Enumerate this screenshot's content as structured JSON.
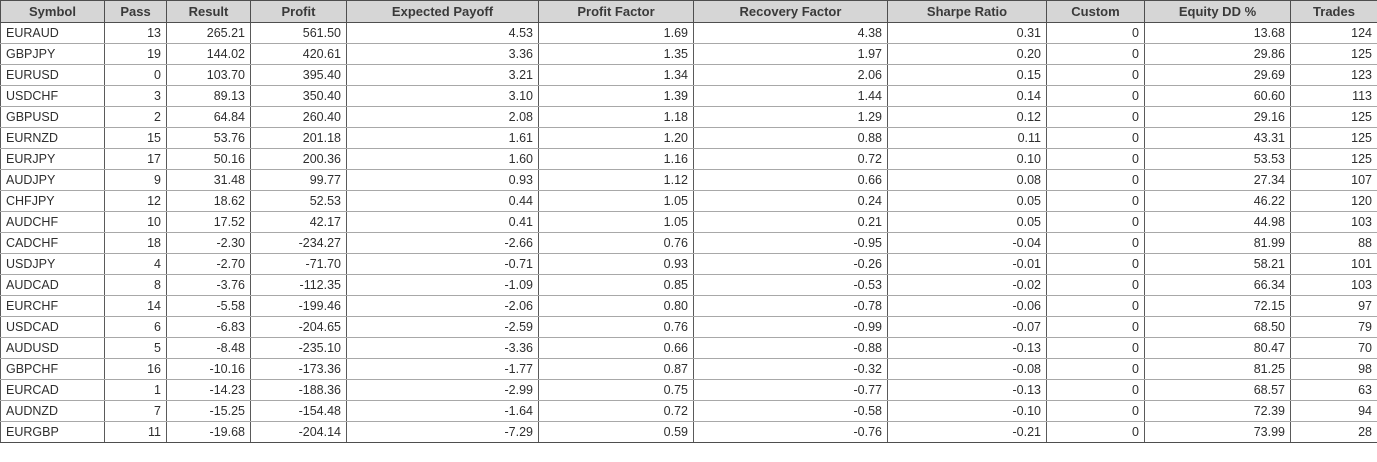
{
  "table": {
    "columns": [
      {
        "key": "symbol",
        "label": "Symbol"
      },
      {
        "key": "pass",
        "label": "Pass"
      },
      {
        "key": "result",
        "label": "Result"
      },
      {
        "key": "profit",
        "label": "Profit"
      },
      {
        "key": "expected_payoff",
        "label": "Expected Payoff"
      },
      {
        "key": "profit_factor",
        "label": "Profit Factor"
      },
      {
        "key": "recovery_factor",
        "label": "Recovery Factor"
      },
      {
        "key": "sharpe_ratio",
        "label": "Sharpe Ratio"
      },
      {
        "key": "custom",
        "label": "Custom"
      },
      {
        "key": "equity_dd_pct",
        "label": "Equity DD %"
      },
      {
        "key": "trades",
        "label": "Trades"
      }
    ],
    "rows": [
      [
        "EURAUD",
        "13",
        "265.21",
        "561.50",
        "4.53",
        "1.69",
        "4.38",
        "0.31",
        "0",
        "13.68",
        "124"
      ],
      [
        "GBPJPY",
        "19",
        "144.02",
        "420.61",
        "3.36",
        "1.35",
        "1.97",
        "0.20",
        "0",
        "29.86",
        "125"
      ],
      [
        "EURUSD",
        "0",
        "103.70",
        "395.40",
        "3.21",
        "1.34",
        "2.06",
        "0.15",
        "0",
        "29.69",
        "123"
      ],
      [
        "USDCHF",
        "3",
        "89.13",
        "350.40",
        "3.10",
        "1.39",
        "1.44",
        "0.14",
        "0",
        "60.60",
        "113"
      ],
      [
        "GBPUSD",
        "2",
        "64.84",
        "260.40",
        "2.08",
        "1.18",
        "1.29",
        "0.12",
        "0",
        "29.16",
        "125"
      ],
      [
        "EURNZD",
        "15",
        "53.76",
        "201.18",
        "1.61",
        "1.20",
        "0.88",
        "0.11",
        "0",
        "43.31",
        "125"
      ],
      [
        "EURJPY",
        "17",
        "50.16",
        "200.36",
        "1.60",
        "1.16",
        "0.72",
        "0.10",
        "0",
        "53.53",
        "125"
      ],
      [
        "AUDJPY",
        "9",
        "31.48",
        "99.77",
        "0.93",
        "1.12",
        "0.66",
        "0.08",
        "0",
        "27.34",
        "107"
      ],
      [
        "CHFJPY",
        "12",
        "18.62",
        "52.53",
        "0.44",
        "1.05",
        "0.24",
        "0.05",
        "0",
        "46.22",
        "120"
      ],
      [
        "AUDCHF",
        "10",
        "17.52",
        "42.17",
        "0.41",
        "1.05",
        "0.21",
        "0.05",
        "0",
        "44.98",
        "103"
      ],
      [
        "CADCHF",
        "18",
        "-2.30",
        "-234.27",
        "-2.66",
        "0.76",
        "-0.95",
        "-0.04",
        "0",
        "81.99",
        "88"
      ],
      [
        "USDJPY",
        "4",
        "-2.70",
        "-71.70",
        "-0.71",
        "0.93",
        "-0.26",
        "-0.01",
        "0",
        "58.21",
        "101"
      ],
      [
        "AUDCAD",
        "8",
        "-3.76",
        "-112.35",
        "-1.09",
        "0.85",
        "-0.53",
        "-0.02",
        "0",
        "66.34",
        "103"
      ],
      [
        "EURCHF",
        "14",
        "-5.58",
        "-199.46",
        "-2.06",
        "0.80",
        "-0.78",
        "-0.06",
        "0",
        "72.15",
        "97"
      ],
      [
        "USDCAD",
        "6",
        "-6.83",
        "-204.65",
        "-2.59",
        "0.76",
        "-0.99",
        "-0.07",
        "0",
        "68.50",
        "79"
      ],
      [
        "AUDUSD",
        "5",
        "-8.48",
        "-235.10",
        "-3.36",
        "0.66",
        "-0.88",
        "-0.13",
        "0",
        "80.47",
        "70"
      ],
      [
        "GBPCHF",
        "16",
        "-10.16",
        "-173.36",
        "-1.77",
        "0.87",
        "-0.32",
        "-0.08",
        "0",
        "81.25",
        "98"
      ],
      [
        "EURCAD",
        "1",
        "-14.23",
        "-188.36",
        "-2.99",
        "0.75",
        "-0.77",
        "-0.13",
        "0",
        "68.57",
        "63"
      ],
      [
        "AUDNZD",
        "7",
        "-15.25",
        "-154.48",
        "-1.64",
        "0.72",
        "-0.58",
        "-0.10",
        "0",
        "72.39",
        "94"
      ],
      [
        "EURGBP",
        "11",
        "-19.68",
        "-204.14",
        "-7.29",
        "0.59",
        "-0.76",
        "-0.21",
        "0",
        "73.99",
        "28"
      ]
    ]
  },
  "colors": {
    "header_background": "#d6d6d6",
    "header_text": "#3a3a3a",
    "cell_text": "#2e2e2e",
    "grid_vertical": "#5a5a5a",
    "grid_horizontal": "#a8a8a8",
    "outer_border": "#4e4e4e",
    "row_background": "#ffffff"
  }
}
